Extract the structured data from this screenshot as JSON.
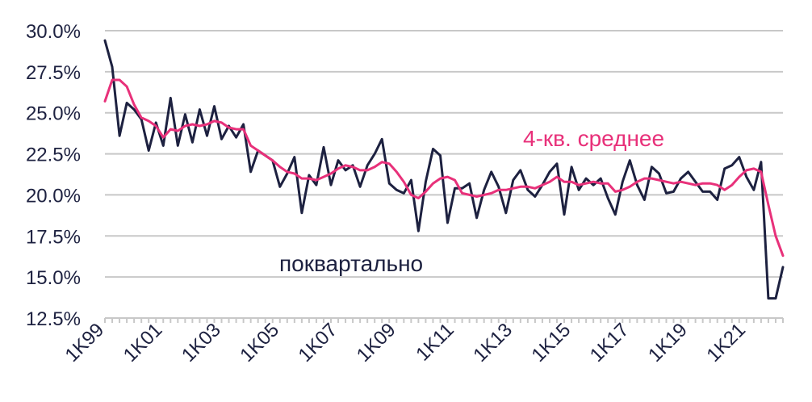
{
  "chart_data": {
    "type": "line",
    "title": "",
    "xlabel": "",
    "ylabel": "",
    "ylim": [
      12.5,
      30.0
    ],
    "yticks": [
      "12.5%",
      "15.0%",
      "17.5%",
      "20.0%",
      "22.5%",
      "25.0%",
      "27.5%",
      "30.0%"
    ],
    "ytick_values": [
      12.5,
      15.0,
      17.5,
      20.0,
      22.5,
      25.0,
      27.5,
      30.0
    ],
    "xticks": [
      "1K99",
      "1K01",
      "1K03",
      "1K05",
      "1K07",
      "1K09",
      "1K11",
      "1K13",
      "1K15",
      "1K17",
      "1K19",
      "1K21"
    ],
    "xtick_index": [
      0,
      8,
      16,
      24,
      32,
      40,
      48,
      56,
      64,
      72,
      80,
      88
    ],
    "grid": true,
    "colors": {
      "quarterly": "#1d2140",
      "ma4": "#e8317a",
      "grid": "#c8c8c8"
    },
    "annotations": [
      {
        "text": "поквартально",
        "series": "quarterly"
      },
      {
        "text": "4-кв. среднее",
        "series": "ma4"
      }
    ],
    "series": [
      {
        "id": "quarterly",
        "name": "поквартально",
        "values": [
          29.4,
          27.8,
          23.6,
          25.6,
          25.2,
          24.6,
          22.7,
          24.4,
          23.0,
          25.9,
          23.0,
          24.9,
          23.2,
          25.2,
          23.6,
          25.4,
          23.4,
          24.2,
          23.5,
          24.3,
          21.4,
          22.7,
          22.4,
          22.1,
          20.5,
          21.3,
          22.3,
          18.9,
          21.2,
          20.6,
          22.9,
          20.6,
          22.1,
          21.5,
          21.8,
          20.5,
          21.8,
          22.5,
          23.4,
          20.7,
          20.3,
          20.1,
          20.9,
          17.8,
          20.8,
          22.8,
          22.4,
          18.3,
          20.4,
          20.4,
          20.7,
          18.6,
          20.3,
          21.4,
          20.5,
          18.9,
          20.9,
          21.5,
          20.3,
          19.9,
          20.6,
          21.4,
          21.9,
          18.8,
          21.7,
          20.3,
          21.0,
          20.6,
          21.0,
          19.8,
          18.8,
          20.8,
          22.1,
          20.6,
          19.7,
          21.7,
          21.3,
          20.1,
          20.2,
          21.0,
          21.4,
          20.8,
          20.2,
          20.2,
          19.7,
          21.6,
          21.8,
          22.3,
          21.1,
          20.3,
          22.0,
          13.7,
          13.7,
          15.6
        ]
      },
      {
        "id": "ma4",
        "name": "4-кв. среднее",
        "values": [
          25.7,
          27.0,
          27.0,
          26.6,
          25.5,
          24.7,
          24.5,
          24.2,
          23.5,
          24.0,
          23.9,
          24.2,
          24.3,
          24.2,
          24.3,
          24.5,
          24.4,
          24.1,
          24.0,
          24.0,
          23.0,
          22.7,
          22.4,
          22.1,
          21.7,
          21.4,
          21.3,
          21.0,
          21.0,
          20.9,
          21.1,
          21.3,
          21.6,
          21.8,
          21.7,
          21.5,
          21.5,
          21.7,
          22.0,
          21.9,
          21.4,
          20.8,
          20.0,
          19.8,
          20.2,
          20.7,
          21.0,
          21.1,
          20.9,
          20.1,
          20.0,
          19.9,
          20.0,
          20.1,
          20.3,
          20.3,
          20.4,
          20.5,
          20.5,
          20.4,
          20.6,
          20.8,
          21.1,
          20.8,
          20.8,
          20.6,
          20.7,
          20.8,
          20.7,
          20.7,
          20.2,
          20.3,
          20.5,
          20.8,
          21.0,
          21.0,
          20.9,
          20.8,
          20.7,
          20.8,
          20.7,
          20.6,
          20.7,
          20.7,
          20.6,
          20.3,
          20.6,
          21.1,
          21.5,
          21.6,
          21.4,
          19.4,
          17.5,
          16.3
        ]
      }
    ]
  }
}
